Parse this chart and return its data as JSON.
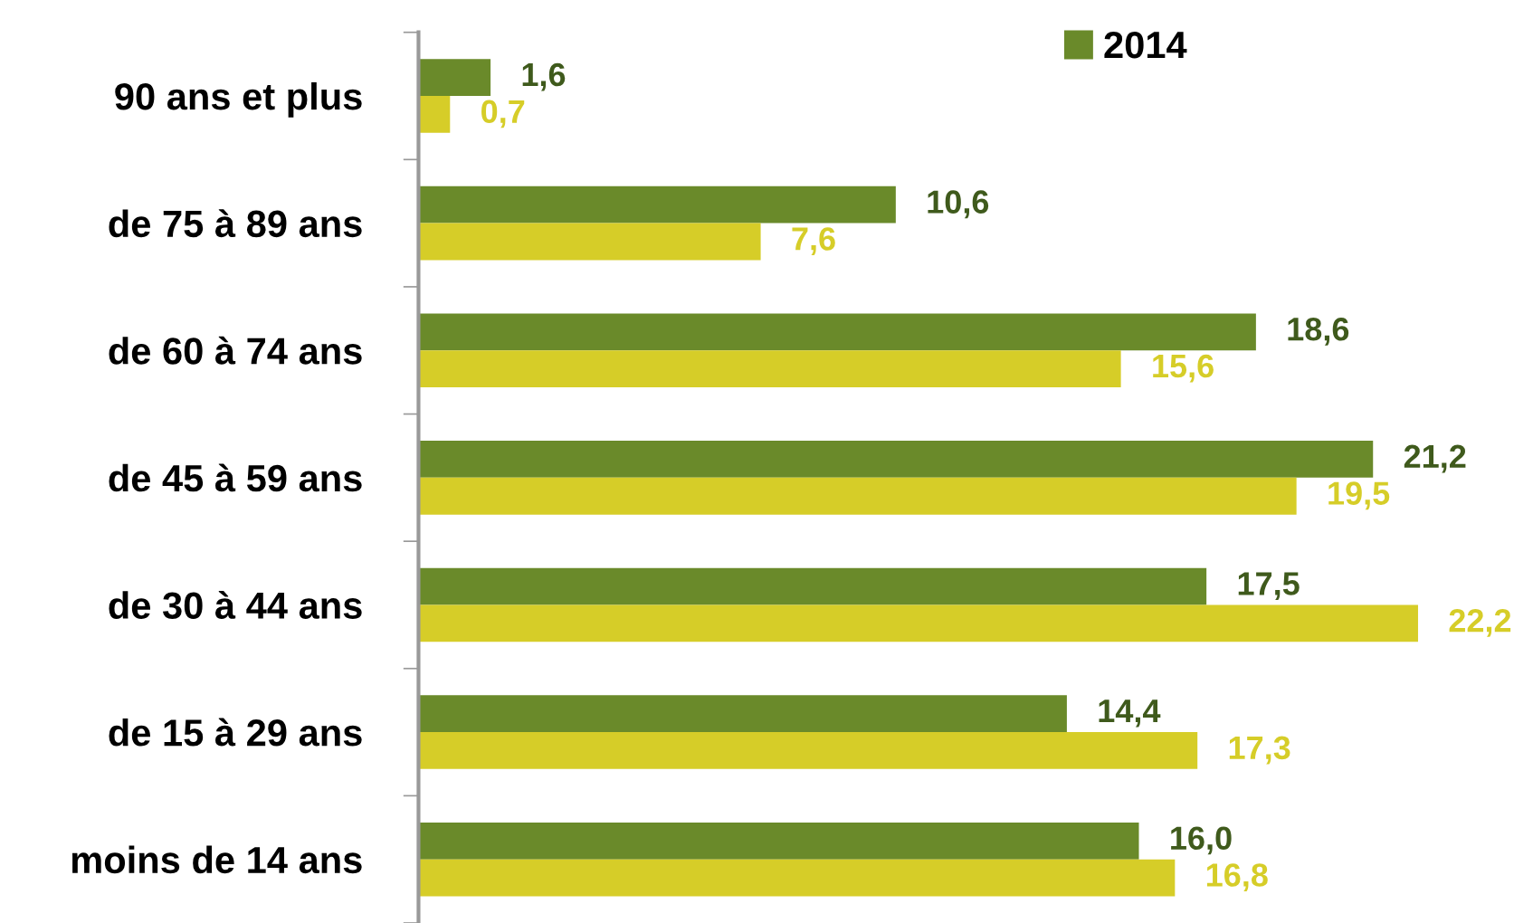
{
  "chart_data": {
    "type": "bar",
    "orientation": "horizontal",
    "categories": [
      "90 ans et plus",
      "de 75 à 89 ans",
      "de 60 à 74 ans",
      "de 45 à 59 ans",
      "de 30 à 44 ans",
      "de 15 à 29 ans",
      "moins de 14 ans"
    ],
    "series": [
      {
        "name": "2014",
        "color": "#6a8a2a",
        "values": [
          1.6,
          10.6,
          18.6,
          21.2,
          17.5,
          14.4,
          16.0
        ],
        "value_labels": [
          "1,6",
          "10,6",
          "18,6",
          "21,2",
          "17,5",
          "14,4",
          "16,0"
        ]
      },
      {
        "color": "#d6cd28",
        "values": [
          0.7,
          7.6,
          15.6,
          19.5,
          22.2,
          17.3,
          16.8
        ],
        "value_labels": [
          "0,7",
          "7,6",
          "15,6",
          "19,5",
          "22,2",
          "17,3",
          "16,8"
        ]
      }
    ],
    "legend": "top right"
  }
}
